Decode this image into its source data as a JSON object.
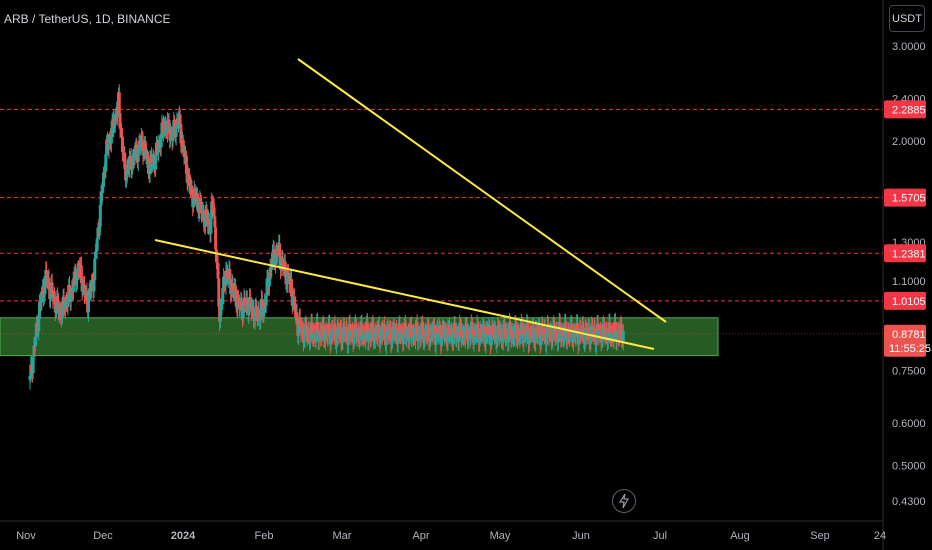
{
  "header": {
    "title": "ARB / TetherUS, 1D, BINANCE",
    "currency": "USDT"
  },
  "chart_data": {
    "type": "candlestick",
    "symbol": "ARB / TetherUS",
    "interval": "1D",
    "exchange": "BINANCE",
    "scale": "log",
    "y_ticks": [
      "3.0000",
      "2.4000",
      "2.0000",
      "1.3000",
      "1.1000",
      "0.7500",
      "0.6000",
      "0.5000",
      "0.4300"
    ],
    "x_ticks": [
      "Nov",
      "Dec",
      "2024",
      "Feb",
      "Mar",
      "Apr",
      "May",
      "Jun",
      "Jul",
      "Aug",
      "Sep",
      "24"
    ],
    "levels": [
      {
        "value": "2.2885",
        "color": "#f23645"
      },
      {
        "value": "1.5705",
        "color": "#f23645"
      },
      {
        "value": "1.2381",
        "color": "#f23645"
      },
      {
        "value": "1.0105",
        "color": "#f23645"
      }
    ],
    "current_price": "0.8781",
    "countdown": "11:55:25",
    "support_zone": {
      "color": "#2e6b2a"
    },
    "trendline_color": "#ffeb3b",
    "up_color": "#26a69a",
    "down_color": "#ef5350"
  }
}
